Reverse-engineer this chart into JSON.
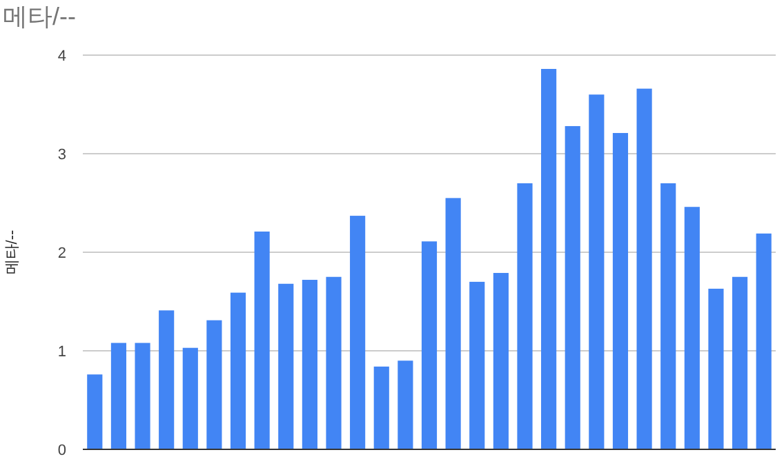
{
  "chart_data": {
    "type": "bar",
    "title": "메타/--",
    "ylabel": "메타/--",
    "color": "#4285f4",
    "categories": [
      null,
      null,
      null,
      null,
      null,
      null,
      null,
      null,
      null,
      null,
      null,
      null,
      null,
      null,
      null,
      null,
      null,
      null,
      null,
      null,
      null,
      null,
      null,
      null,
      null,
      null,
      null,
      null,
      null
    ],
    "values": [
      0.76,
      1.08,
      1.08,
      1.41,
      1.03,
      1.31,
      1.59,
      2.21,
      1.68,
      1.72,
      1.75,
      2.37,
      0.84,
      0.9,
      2.11,
      2.55,
      1.7,
      1.79,
      2.7,
      3.86,
      3.28,
      3.6,
      3.21,
      3.66,
      2.7,
      2.46,
      1.63,
      1.75,
      2.19
    ],
    "ylim": [
      0,
      4
    ],
    "yticks": [
      0,
      1,
      2,
      3,
      4
    ],
    "grid": "y"
  }
}
